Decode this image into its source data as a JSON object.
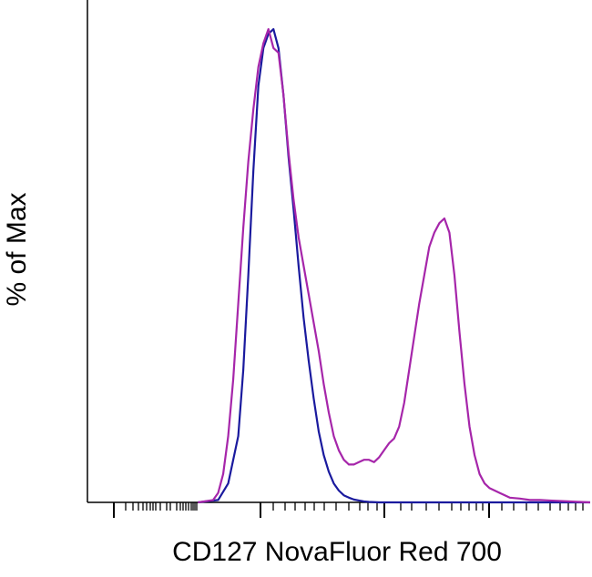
{
  "chart_data": {
    "type": "line",
    "title": "",
    "xlabel": "CD127 NovaFluor Red 700",
    "ylabel": "% of Max",
    "xlim": [
      0,
      100
    ],
    "ylim": [
      0,
      100
    ],
    "grid": false,
    "legend": "none",
    "series": [
      {
        "color": "#1a1a9e",
        "x": [
          22,
          26,
          28,
          30,
          31,
          32,
          33,
          34,
          35,
          36,
          37,
          38,
          39,
          40,
          41,
          42,
          43,
          44,
          45,
          46,
          47,
          48,
          49,
          50,
          51,
          52,
          53,
          54,
          55,
          56,
          57,
          58,
          59,
          60,
          100
        ],
        "y": [
          0,
          0.5,
          4,
          14,
          28,
          48,
          70,
          88,
          96,
          99,
          100,
          96,
          86,
          73,
          62,
          50,
          39,
          30,
          22,
          15,
          10,
          6.5,
          4,
          2.5,
          1.5,
          1,
          0.6,
          0.4,
          0.2,
          0.1,
          0.05,
          0,
          0,
          0,
          0
        ]
      },
      {
        "color": "#a626aa",
        "x": [
          22,
          25,
          26,
          27,
          28,
          29,
          30,
          31,
          32,
          33,
          34,
          35,
          36,
          37,
          38,
          39,
          40,
          41,
          42,
          43,
          44,
          45,
          46,
          47,
          48,
          49,
          50,
          51,
          52,
          53,
          54,
          55,
          56,
          57,
          58,
          59,
          60,
          61,
          62,
          63,
          64,
          65,
          66,
          67,
          68,
          69,
          70,
          71,
          72,
          73,
          74,
          75,
          76,
          77,
          78,
          79,
          80,
          82,
          84,
          86,
          88,
          90,
          92,
          94,
          96,
          98,
          100
        ],
        "y": [
          0,
          0.5,
          2,
          6,
          14,
          26,
          42,
          58,
          72,
          83,
          92,
          97,
          100,
          96,
          95,
          86,
          74,
          64,
          56,
          50,
          44,
          38,
          32,
          25,
          19,
          14,
          11,
          9,
          8,
          8,
          8.5,
          9,
          9,
          8.5,
          9.5,
          11,
          12.5,
          13.5,
          16,
          21,
          28,
          35,
          42,
          48,
          54,
          57,
          59,
          60,
          57,
          48,
          36,
          25,
          16,
          10,
          6,
          4,
          3,
          2,
          1,
          0.8,
          0.5,
          0.5,
          0.4,
          0.3,
          0.2,
          0.1,
          0
        ]
      }
    ]
  }
}
